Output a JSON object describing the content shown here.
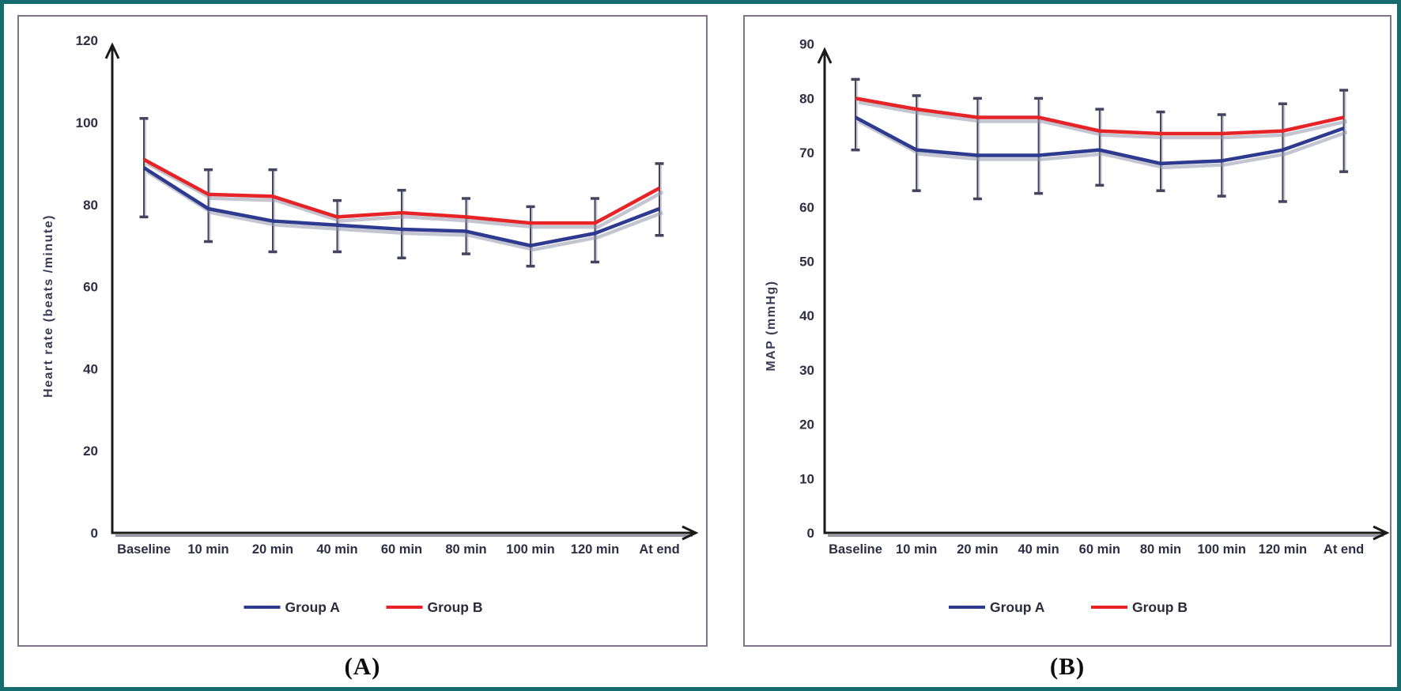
{
  "figure": {
    "caption_a": "(A)",
    "caption_b": "(B)"
  },
  "colors": {
    "frame_border": "#156b6e",
    "panel_border": "#7d7487",
    "group_a_blue": "#2e3a8f",
    "group_b_red": "#e62428",
    "error_bar": "#44445e",
    "axis": "#1a1a1a",
    "text": "#2e2e44"
  },
  "chart_data": [
    {
      "type": "line",
      "panel": "A",
      "ylabel": "Heart rate (beats /minute)",
      "xlabel": "",
      "ylim": [
        0,
        120
      ],
      "ytick_step": 20,
      "grid": false,
      "legend_position": "bottom",
      "categories": [
        "Baseline",
        "10 min",
        "20 min",
        "40 min",
        "60 min",
        "80 min",
        "100 min",
        "120 min",
        "At end"
      ],
      "series": [
        {
          "name": "Group A",
          "color": "#2e3a8f",
          "values": [
            89,
            79,
            76,
            75,
            74,
            73.5,
            70,
            73,
            79
          ]
        },
        {
          "name": "Group B",
          "color": "#e62428",
          "values": [
            91,
            82.5,
            82,
            77,
            78,
            77,
            75.5,
            75.5,
            84
          ]
        }
      ],
      "error_bars": {
        "top": [
          101,
          88.5,
          88.5,
          81,
          83.5,
          81.5,
          79.5,
          81.5,
          90
        ],
        "bottom": [
          77,
          71,
          68.5,
          68.5,
          67,
          68,
          65,
          66,
          72.5
        ]
      }
    },
    {
      "type": "line",
      "panel": "B",
      "ylabel": "MAP (mmHg)",
      "xlabel": "",
      "ylim": [
        0,
        90
      ],
      "ytick_step": 10,
      "grid": false,
      "legend_position": "bottom",
      "categories": [
        "Baseline",
        "10 min",
        "20 min",
        "40 min",
        "60 min",
        "80 min",
        "100 min",
        "120 min",
        "At end"
      ],
      "series": [
        {
          "name": "Group A",
          "color": "#2e3a8f",
          "values": [
            76.5,
            70.5,
            69.5,
            69.5,
            70.5,
            68,
            68.5,
            70.5,
            74.5
          ]
        },
        {
          "name": "Group B",
          "color": "#e62428",
          "values": [
            80,
            78,
            76.5,
            76.5,
            74,
            73.5,
            73.5,
            74,
            76.5
          ]
        }
      ],
      "error_bars": {
        "top": [
          83.5,
          80.5,
          80,
          80,
          78,
          77.5,
          77,
          79,
          81.5
        ],
        "bottom": [
          70.5,
          63,
          61.5,
          62.5,
          64,
          63,
          62,
          61,
          66.5
        ]
      }
    }
  ]
}
